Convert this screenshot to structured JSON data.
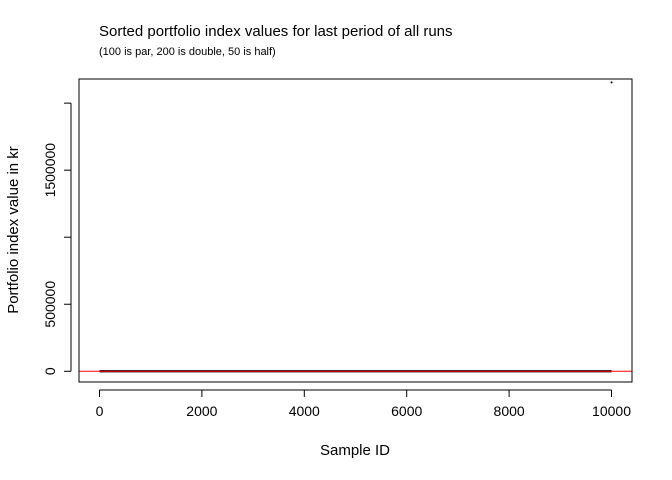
{
  "chart_data": {
    "type": "scatter",
    "title": "Sorted portfolio index values for last period of all runs",
    "subtitle": "(100 is par, 200 is double, 50 is half)",
    "xlabel": "Sample ID",
    "ylabel": "Portfolio index value in kr",
    "xlim": [
      -400,
      10400
    ],
    "ylim": [
      -80000,
      2180000
    ],
    "x_ticks": [
      0,
      2000,
      4000,
      6000,
      8000,
      10000
    ],
    "x_tick_labels": [
      "0",
      "2000",
      "4000",
      "6000",
      "8000",
      "10000"
    ],
    "y_ticks": [
      0,
      500000,
      1000000,
      1500000,
      2000000
    ],
    "y_tick_labels": [
      "0",
      "500000",
      "",
      "1500000",
      ""
    ],
    "series_body": {
      "x_range": [
        1,
        10000
      ],
      "y_approx": 100,
      "color": "#000000"
    },
    "outlier_points": [
      {
        "x": 10000,
        "y": 2155000
      }
    ],
    "reference_line": {
      "y": 100,
      "color": "#ff0000"
    },
    "grid": false,
    "legend": "none"
  }
}
